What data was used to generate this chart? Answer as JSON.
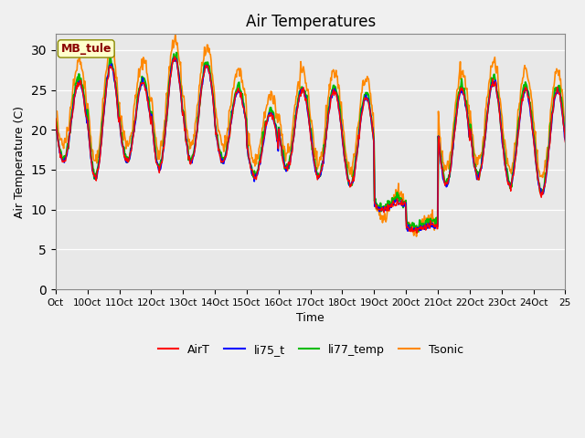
{
  "title": "Air Temperatures",
  "xlabel": "Time",
  "ylabel": "Air Temperature (C)",
  "ylim": [
    0,
    32
  ],
  "yticks": [
    0,
    5,
    10,
    15,
    20,
    25,
    30
  ],
  "plot_bg": "#e8e8e8",
  "fig_bg": "#f0f0f0",
  "annotation_text": "MB_tule",
  "annotation_color": "#8b0000",
  "annotation_bg": "#ffffcc",
  "series_colors": {
    "AirT": "#ff0000",
    "li75_t": "#0000ff",
    "li77_temp": "#00bb00",
    "Tsonic": "#ff8800"
  },
  "xtick_labels": [
    "Oct",
    "10Oct",
    "11Oct",
    "12Oct",
    "13Oct",
    "14Oct",
    "15Oct",
    "16Oct",
    "17Oct",
    "18Oct",
    "19Oct",
    "20Oct",
    "21Oct",
    "22Oct",
    "23Oct",
    "24Oct",
    "25"
  ],
  "n_days": 16,
  "start_day": 9,
  "n_pts_per_day": 48
}
